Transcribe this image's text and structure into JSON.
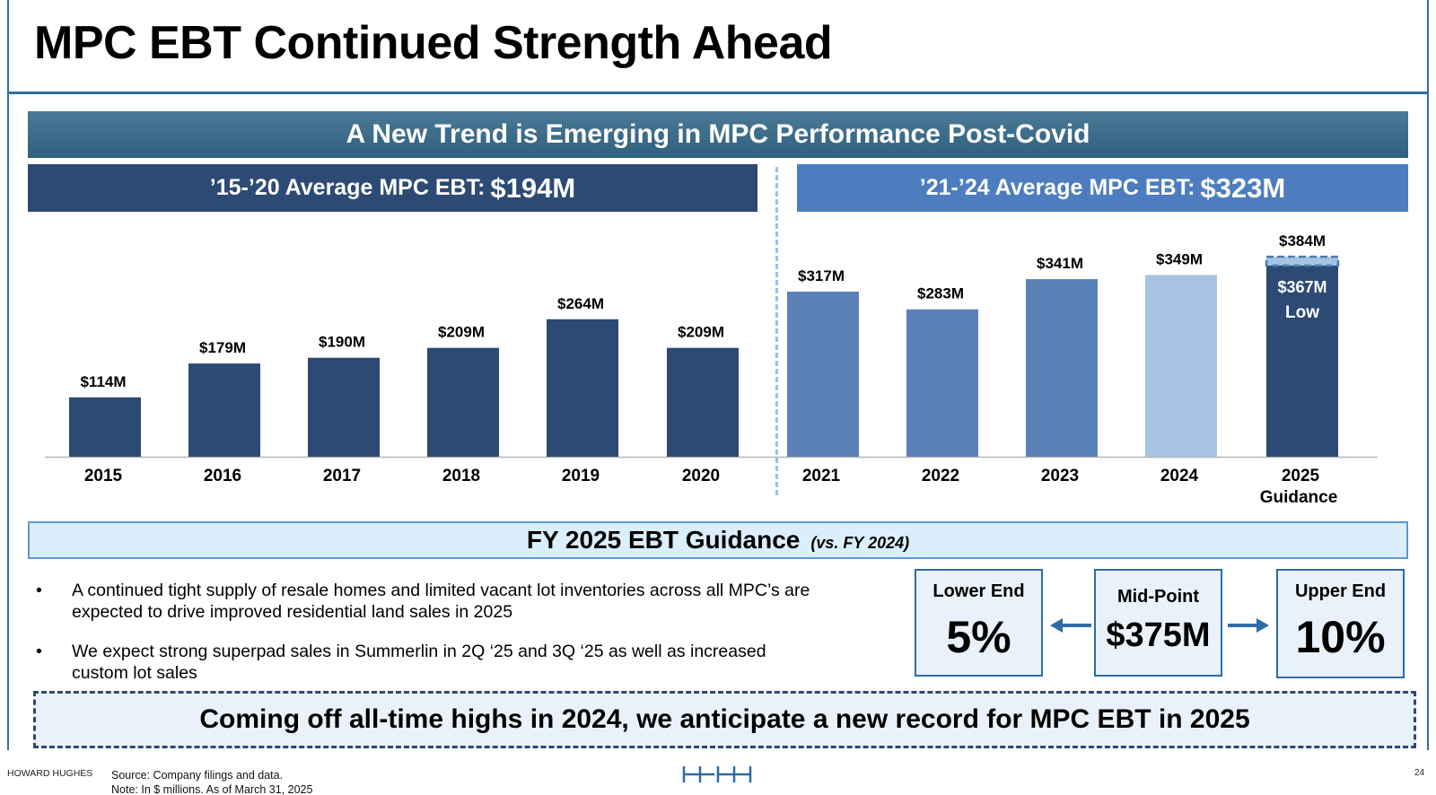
{
  "title": "MPC EBT Continued Strength Ahead",
  "banner": "A New Trend is Emerging in MPC Performance Post-Covid",
  "avg_left": {
    "label": "’15-’20 Average MPC EBT:",
    "value": "$194M"
  },
  "avg_right": {
    "label": "’21-’24 Average MPC EBT:",
    "value": "$323M"
  },
  "chart_data": {
    "type": "bar",
    "categories": [
      "2015",
      "2016",
      "2017",
      "2018",
      "2019",
      "2020",
      "2021",
      "2022",
      "2023",
      "2024",
      "2025"
    ],
    "category_sublabels": [
      "",
      "",
      "",
      "",
      "",
      "",
      "",
      "",
      "",
      "",
      "Guidance"
    ],
    "values": [
      114,
      179,
      190,
      209,
      264,
      209,
      317,
      283,
      341,
      349,
      367
    ],
    "data_labels": [
      "$114M",
      "$179M",
      "$190M",
      "$209M",
      "$264M",
      "$209M",
      "$317M",
      "$283M",
      "$341M",
      "$349M",
      "$367M"
    ],
    "bar_colors": [
      "#2c4a73",
      "#2c4a73",
      "#2c4a73",
      "#2c4a73",
      "#2c4a73",
      "#2c4a73",
      "#5a82b8",
      "#5a82b8",
      "#5a82b8",
      "#a6c3e2",
      "#2c4a73"
    ],
    "guidance_high": {
      "value": 384,
      "label": "$384M"
    },
    "guidance_low_label": "Low",
    "ylim": [
      0,
      390
    ],
    "grid": false,
    "xlabel": "",
    "ylabel": ""
  },
  "guidance": {
    "title": "FY 2025 EBT Guidance",
    "subtitle": "(vs. FY 2024)",
    "lower": {
      "label": "Lower End",
      "value": "5%"
    },
    "mid": {
      "label": "Mid-Point",
      "value": "$375M"
    },
    "upper": {
      "label": "Upper End",
      "value": "10%"
    },
    "bullets": [
      "A continued tight supply of resale homes and limited vacant lot inventories across all MPC’s are expected to drive improved residential land sales in 2025",
      "We expect strong superpad sales in Summerlin in 2Q ‘25 and 3Q ‘25 as well as increased custom lot sales"
    ]
  },
  "callout": "Coming off all-time highs in 2024, we anticipate a new record for MPC EBT in 2025",
  "footer": {
    "brand": "HOWARD HUGHES",
    "source": "Source: Company filings and data.",
    "note": "Note: In $ millions. As of March 31, 2025",
    "page": "24"
  },
  "colors": {
    "accent": "#2e6ca4",
    "dark_bar": "#2c4a73",
    "mid_bar": "#5a82b8",
    "light_bar": "#a6c3e2"
  }
}
